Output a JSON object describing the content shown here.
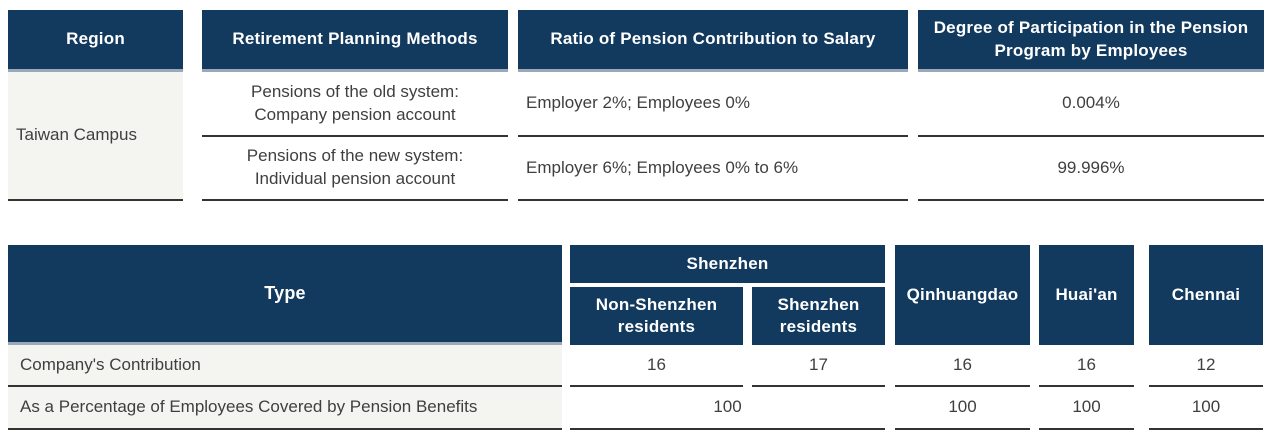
{
  "colors": {
    "header_bg": "#12395e",
    "header_text": "#ffffff",
    "header_underline": "#9aa8ba",
    "row_label_bg": "#f4f4f1",
    "body_text": "#3f3f3f",
    "divider_line": "#333333"
  },
  "table1": {
    "headers": [
      "Region",
      "Retirement Planning Methods",
      "Ratio of Pension Contribution to Salary",
      "Degree of Participation in the Pension Program by Employees"
    ],
    "region": "Taiwan Campus",
    "rows": [
      {
        "method_line1": "Pensions of the old system:",
        "method_line2": "Company pension account",
        "ratio": "Employer 2%; Employees 0%",
        "participation": "0.004%"
      },
      {
        "method_line1": "Pensions of the new system:",
        "method_line2": "Individual pension account",
        "ratio": "Employer 6%; Employees 0% to 6%",
        "participation": "99.996%"
      }
    ]
  },
  "table2": {
    "type_header": "Type",
    "group_header": "Shenzhen",
    "sub_headers": [
      "Non-Shenzhen residents",
      "Shenzhen residents"
    ],
    "city_headers": [
      "Qinhuangdao",
      "Huai'an",
      "Chennai"
    ],
    "rows": [
      {
        "label": "Company's Contribution",
        "non_shenzhen": "16",
        "shenzhen": "17",
        "qinhuangdao": "16",
        "huaian": "16",
        "chennai": "12"
      },
      {
        "label": "As a Percentage of Employees Covered by Pension Benefits",
        "shenzhen_combined": "100",
        "qinhuangdao": "100",
        "huaian": "100",
        "chennai": "100"
      }
    ]
  }
}
